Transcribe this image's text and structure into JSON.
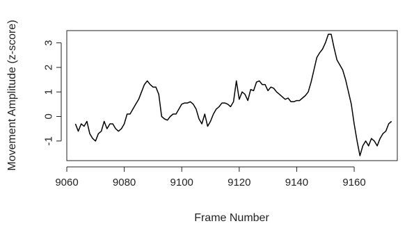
{
  "chart_data": {
    "type": "line",
    "title": "",
    "xlabel": "Frame Number",
    "ylabel": "Movement Amplitude (z-score)",
    "xlim": [
      9060,
      9175
    ],
    "ylim": [
      -1.8,
      3.5
    ],
    "x_ticks": [
      9060,
      9080,
      9100,
      9120,
      9140,
      9160
    ],
    "x_tick_labels": [
      "9060",
      "9080",
      "9100",
      "9120",
      "9140",
      "9160"
    ],
    "y_ticks": [
      -1,
      0,
      1,
      2,
      3
    ],
    "y_tick_labels": [
      "-1",
      "0",
      "1",
      "2",
      "3"
    ],
    "grid": false,
    "line_color": "#000000",
    "series": [
      {
        "name": "",
        "x": [
          9063,
          9064,
          9065,
          9066,
          9067,
          9068,
          9069,
          9070,
          9071,
          9072,
          9073,
          9074,
          9075,
          9076,
          9077,
          9078,
          9079,
          9080,
          9081,
          9082,
          9083,
          9084,
          9085,
          9086,
          9087,
          9088,
          9089,
          9090,
          9091,
          9092,
          9093,
          9094,
          9095,
          9096,
          9097,
          9098,
          9099,
          9100,
          9101,
          9102,
          9103,
          9104,
          9105,
          9106,
          9107,
          9108,
          9109,
          9110,
          9111,
          9112,
          9113,
          9114,
          9115,
          9116,
          9117,
          9118,
          9119,
          9120,
          9121,
          9122,
          9123,
          9124,
          9125,
          9126,
          9127,
          9128,
          9129,
          9130,
          9131,
          9132,
          9133,
          9134,
          9135,
          9136,
          9137,
          9138,
          9139,
          9140,
          9141,
          9142,
          9143,
          9144,
          9145,
          9146,
          9147,
          9148,
          9149,
          9150,
          9151,
          9152,
          9153,
          9154,
          9155,
          9156,
          9157,
          9158,
          9159,
          9160,
          9161,
          9162,
          9163,
          9164,
          9165,
          9166,
          9167,
          9168,
          9169,
          9170,
          9171,
          9172,
          9173
        ],
        "y": [
          -0.3,
          -0.6,
          -0.3,
          -0.4,
          -0.2,
          -0.7,
          -0.9,
          -1.0,
          -0.7,
          -0.6,
          -0.2,
          -0.5,
          -0.3,
          -0.3,
          -0.5,
          -0.6,
          -0.5,
          -0.3,
          0.1,
          0.1,
          0.3,
          0.5,
          0.7,
          1.0,
          1.3,
          1.45,
          1.3,
          1.2,
          1.2,
          0.9,
          0.0,
          -0.1,
          -0.15,
          0.0,
          0.1,
          0.1,
          0.3,
          0.5,
          0.55,
          0.55,
          0.6,
          0.5,
          0.3,
          -0.1,
          -0.3,
          0.1,
          -0.4,
          -0.2,
          0.1,
          0.3,
          0.4,
          0.55,
          0.55,
          0.5,
          0.4,
          0.6,
          1.45,
          0.7,
          1.0,
          0.9,
          0.65,
          1.1,
          1.05,
          1.4,
          1.45,
          1.3,
          1.3,
          1.05,
          1.2,
          1.15,
          1.0,
          0.9,
          0.8,
          0.7,
          0.75,
          0.6,
          0.6,
          0.65,
          0.65,
          0.75,
          0.85,
          1.0,
          1.4,
          1.9,
          2.4,
          2.6,
          2.75,
          3.0,
          3.35,
          3.35,
          2.8,
          2.3,
          2.1,
          1.9,
          1.5,
          1.0,
          0.5,
          -0.3,
          -1.0,
          -1.6,
          -1.2,
          -1.0,
          -1.2,
          -0.9,
          -1.0,
          -1.2,
          -0.9,
          -0.7,
          -0.6,
          -0.3,
          -0.2
        ]
      }
    ]
  }
}
